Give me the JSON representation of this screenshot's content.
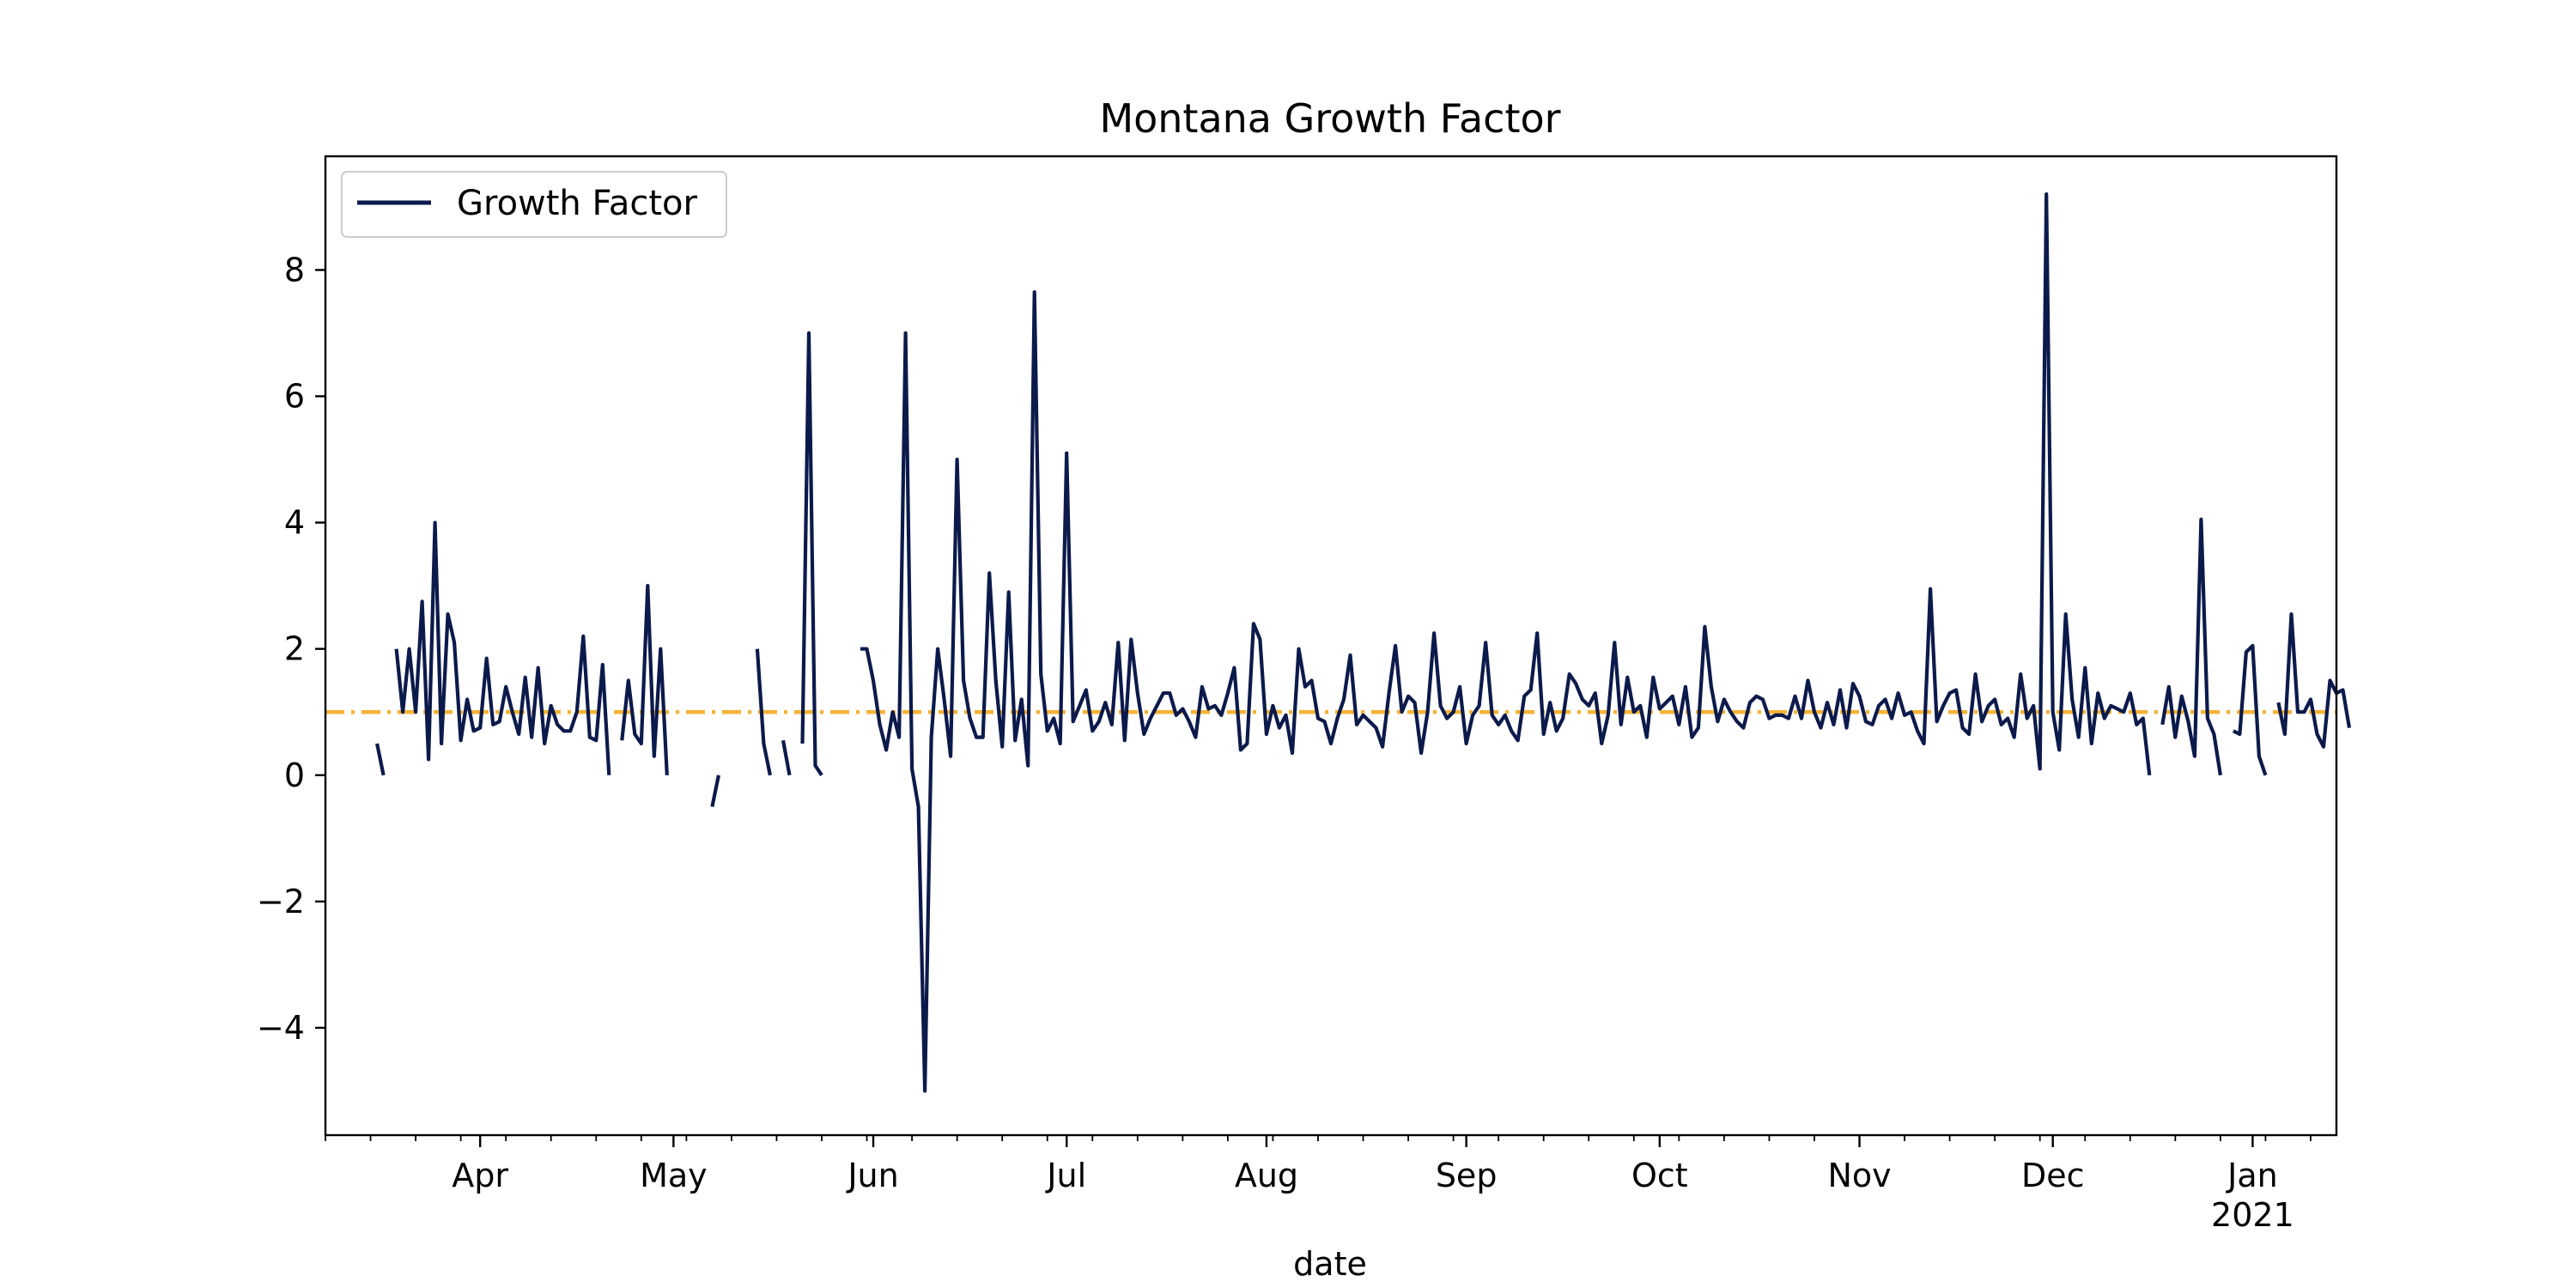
{
  "chart_data": {
    "type": "line",
    "title": "Montana Growth Factor",
    "xlabel": "date",
    "ylabel": "",
    "x_start": "2020-03-08",
    "x_end": "2021-01-14",
    "ylim": [
      -5.7,
      9.8
    ],
    "y_ticks": [
      -4,
      -2,
      0,
      2,
      4,
      6,
      8
    ],
    "y_tick_labels": [
      "−4",
      "−2",
      "0",
      "2",
      "4",
      "6",
      "8"
    ],
    "x_ticks": [
      {
        "date": "2020-04-01",
        "label": "Apr"
      },
      {
        "date": "2020-05-01",
        "label": "May"
      },
      {
        "date": "2020-06-01",
        "label": "Jun"
      },
      {
        "date": "2020-07-01",
        "label": "Jul"
      },
      {
        "date": "2020-08-01",
        "label": "Aug"
      },
      {
        "date": "2020-09-01",
        "label": "Sep"
      },
      {
        "date": "2020-10-01",
        "label": "Oct"
      },
      {
        "date": "2020-11-01",
        "label": "Nov"
      },
      {
        "date": "2020-12-01",
        "label": "Dec"
      },
      {
        "date": "2021-01-01",
        "label": "Jan",
        "sublabel": "2021"
      }
    ],
    "reference_line": {
      "y": 1.0,
      "color": "#f5b335",
      "style": "dashdot"
    },
    "legend": {
      "position": "top-left",
      "entries": [
        "Growth Factor"
      ]
    },
    "series": [
      {
        "name": "Growth Factor",
        "color": "#0c1a4b",
        "start_date": "2020-03-16",
        "values": [
          0.5,
          0.0,
          null,
          2.0,
          1.0,
          2.0,
          1.0,
          2.75,
          0.25,
          4.0,
          0.5,
          2.55,
          2.1,
          0.55,
          1.2,
          0.7,
          0.75,
          1.85,
          0.8,
          0.85,
          1.4,
          1.0,
          0.65,
          1.55,
          0.6,
          1.7,
          0.5,
          1.1,
          0.8,
          0.7,
          0.7,
          1.0,
          2.2,
          0.6,
          0.55,
          1.75,
          0.0,
          null,
          0.55,
          1.5,
          0.65,
          0.5,
          3.0,
          0.3,
          2.0,
          0.0,
          null,
          null,
          null,
          null,
          null,
          null,
          -0.5,
          0.0,
          null,
          null,
          null,
          null,
          null,
          2.0,
          0.5,
          0.0,
          null,
          0.55,
          0.0,
          null,
          0.5,
          7.0,
          0.15,
          0.0,
          null,
          null,
          null,
          null,
          null,
          2.0,
          2.0,
          1.5,
          0.8,
          0.4,
          1.0,
          0.6,
          7.0,
          0.1,
          -0.5,
          -5.0,
          0.6,
          2.0,
          1.2,
          0.3,
          5.0,
          1.5,
          0.9,
          0.6,
          0.6,
          3.2,
          1.5,
          0.45,
          2.9,
          0.55,
          1.2,
          0.15,
          7.65,
          1.6,
          0.7,
          0.9,
          0.5,
          5.1,
          0.85,
          1.1,
          1.35,
          0.7,
          0.85,
          1.15,
          0.8,
          2.1,
          0.55,
          2.15,
          1.3,
          0.65,
          0.9,
          1.1,
          1.3,
          1.3,
          0.95,
          1.05,
          0.85,
          0.6,
          1.4,
          1.05,
          1.1,
          0.95,
          1.3,
          1.7,
          0.4,
          0.5,
          2.4,
          2.15,
          0.65,
          1.1,
          0.75,
          0.95,
          0.35,
          2.0,
          1.4,
          1.5,
          0.9,
          0.85,
          0.5,
          0.9,
          1.2,
          1.9,
          0.8,
          0.95,
          0.85,
          0.75,
          0.45,
          1.3,
          2.05,
          1.0,
          1.25,
          1.15,
          0.35,
          1.0,
          2.25,
          1.1,
          0.9,
          1.0,
          1.4,
          0.5,
          0.95,
          1.1,
          2.1,
          0.95,
          0.8,
          0.95,
          0.7,
          0.55,
          1.25,
          1.35,
          2.25,
          0.65,
          1.15,
          0.7,
          0.9,
          1.6,
          1.45,
          1.2,
          1.1,
          1.3,
          0.5,
          0.95,
          2.1,
          0.8,
          1.55,
          1.0,
          1.1,
          0.6,
          1.55,
          1.05,
          1.15,
          1.25,
          0.8,
          1.4,
          0.6,
          0.75,
          2.35,
          1.4,
          0.85,
          1.2,
          1.0,
          0.85,
          0.75,
          1.15,
          1.25,
          1.2,
          0.9,
          0.95,
          0.95,
          0.9,
          1.25,
          0.9,
          1.5,
          1.0,
          0.75,
          1.15,
          0.8,
          1.35,
          0.75,
          1.45,
          1.25,
          0.85,
          0.8,
          1.1,
          1.2,
          0.9,
          1.3,
          0.95,
          1.0,
          0.7,
          0.5,
          2.95,
          0.85,
          1.1,
          1.3,
          1.35,
          0.75,
          0.65,
          1.6,
          0.85,
          1.1,
          1.2,
          0.8,
          0.9,
          0.6,
          1.6,
          0.9,
          1.1,
          0.1,
          9.2,
          1.0,
          0.4,
          2.55,
          1.2,
          0.6,
          1.7,
          0.5,
          1.3,
          0.9,
          1.1,
          1.05,
          1.0,
          1.3,
          0.8,
          0.9,
          0.0,
          null,
          0.8,
          1.4,
          0.6,
          1.25,
          0.85,
          0.3,
          4.05,
          0.9,
          0.65,
          0.0,
          null,
          0.7,
          0.65,
          1.95,
          2.05,
          0.3,
          0.0,
          null,
          1.15,
          0.65,
          2.55,
          1.0,
          1.0,
          1.2,
          0.65,
          0.45,
          1.5,
          1.3,
          1.35,
          0.75
        ]
      }
    ]
  }
}
